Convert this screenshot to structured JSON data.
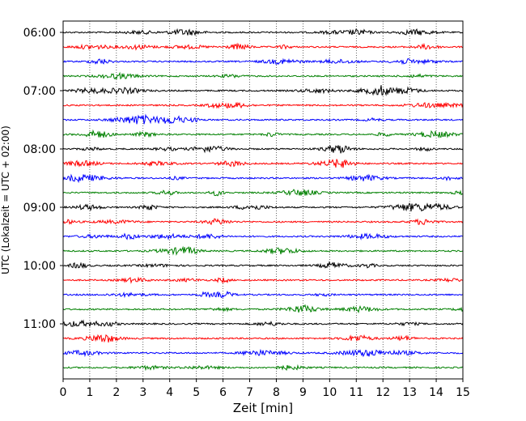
{
  "chart_data": {
    "type": "line",
    "chart_kind": "helicorder seismogram",
    "xlabel": "Zeit  [min]",
    "ylabel": "UTC (Lokalzeit = UTC + 02:00)",
    "xlim": [
      0,
      15
    ],
    "x_ticks": [
      "0",
      "1",
      "2",
      "3",
      "4",
      "5",
      "6",
      "7",
      "8",
      "9",
      "10",
      "11",
      "12",
      "13",
      "14",
      "15"
    ],
    "y_tick_labels": [
      "06:00",
      "07:00",
      "08:00",
      "09:00",
      "10:00",
      "11:00"
    ],
    "grid": {
      "vertical_dotted": true
    },
    "trace_minutes_per_line": 15,
    "traces_per_hour": 4,
    "trace_colors": [
      "#000000",
      "#ff0000",
      "#0000ff",
      "#008000"
    ],
    "traces": [
      {
        "start": "06:00"
      },
      {
        "start": "06:15"
      },
      {
        "start": "06:30"
      },
      {
        "start": "06:45"
      },
      {
        "start": "07:00"
      },
      {
        "start": "07:15"
      },
      {
        "start": "07:30"
      },
      {
        "start": "07:45"
      },
      {
        "start": "08:00"
      },
      {
        "start": "08:15"
      },
      {
        "start": "08:30"
      },
      {
        "start": "08:45"
      },
      {
        "start": "09:00"
      },
      {
        "start": "09:15"
      },
      {
        "start": "09:30"
      },
      {
        "start": "09:45"
      },
      {
        "start": "10:00"
      },
      {
        "start": "10:15"
      },
      {
        "start": "10:30"
      },
      {
        "start": "10:45"
      },
      {
        "start": "11:00"
      },
      {
        "start": "11:15"
      },
      {
        "start": "11:30"
      },
      {
        "start": "11:45"
      }
    ]
  }
}
